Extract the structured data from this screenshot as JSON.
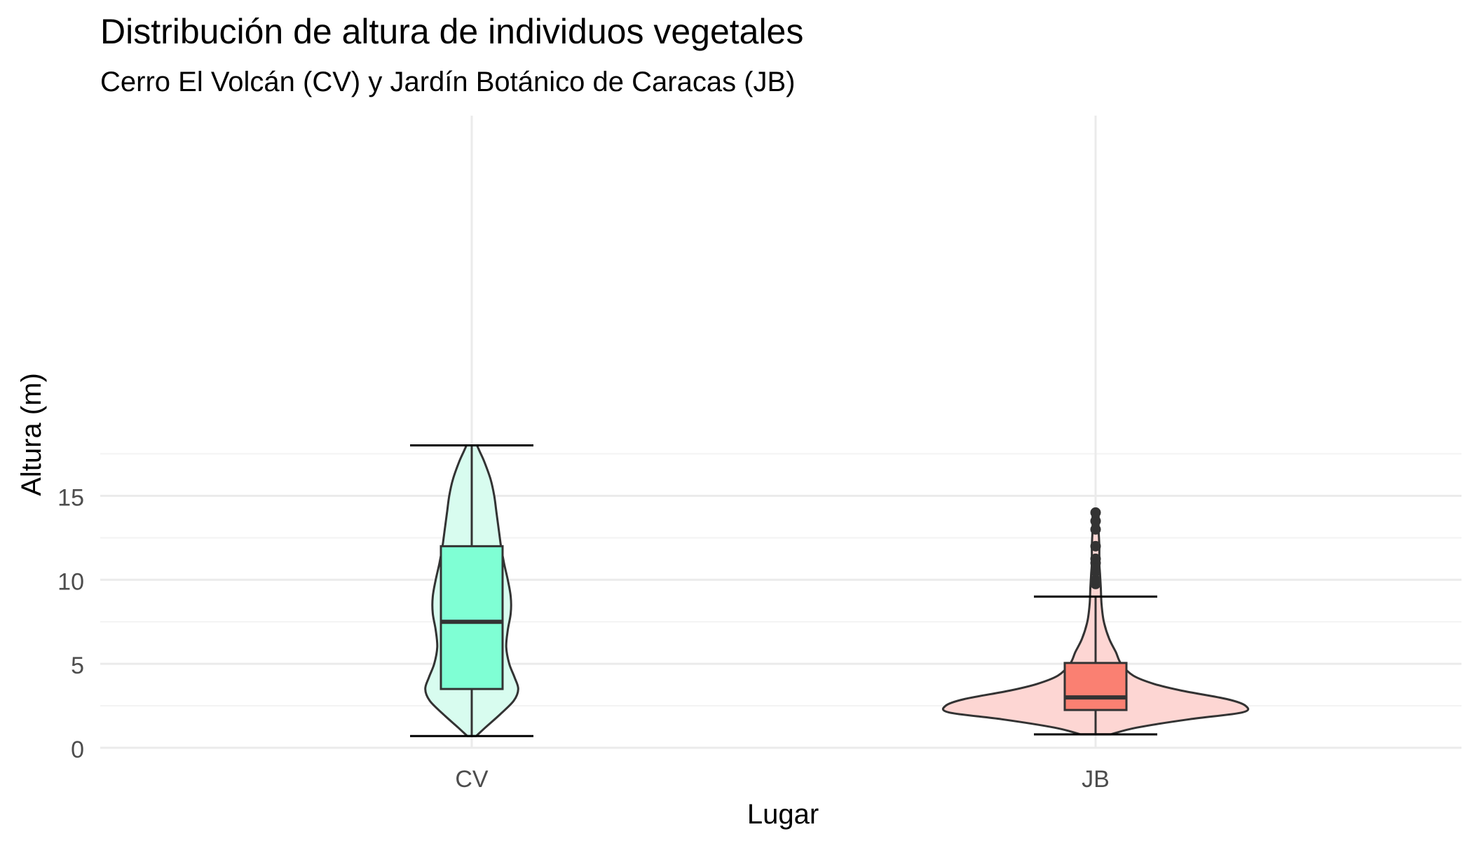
{
  "chart_data": {
    "type": "violin",
    "title": "Distribución de altura de individuos vegetales",
    "subtitle": "Cerro El Volcán (CV) y Jardín Botánico de Caracas (JB)",
    "xlabel": "Lugar",
    "ylabel": "Altura (m)",
    "ylim": [
      0,
      18.5
    ],
    "y_ticks": [
      0,
      5,
      10,
      15
    ],
    "y_tick_labels": [
      "0",
      "5",
      "10",
      "15"
    ],
    "grid": true,
    "legend": "none",
    "categories": [
      "CV",
      "JB"
    ],
    "groups": [
      {
        "name": "CV",
        "violin_color": "#d8fcef",
        "box_color": "#7fffd4",
        "min": 0.7,
        "q1": 3.5,
        "median": 7.5,
        "q3": 12.0,
        "max": 18.0,
        "outliers": [],
        "density_profile": [
          {
            "y": 0.7,
            "w": 0.06
          },
          {
            "y": 1.2,
            "w": 0.18
          },
          {
            "y": 2.0,
            "w": 0.38
          },
          {
            "y": 2.8,
            "w": 0.56
          },
          {
            "y": 3.5,
            "w": 0.62
          },
          {
            "y": 4.2,
            "w": 0.57
          },
          {
            "y": 5.0,
            "w": 0.5
          },
          {
            "y": 6.0,
            "w": 0.46
          },
          {
            "y": 7.0,
            "w": 0.48
          },
          {
            "y": 8.0,
            "w": 0.52
          },
          {
            "y": 9.0,
            "w": 0.52
          },
          {
            "y": 10.0,
            "w": 0.48
          },
          {
            "y": 11.0,
            "w": 0.43
          },
          {
            "y": 12.0,
            "w": 0.39
          },
          {
            "y": 13.0,
            "w": 0.36
          },
          {
            "y": 14.0,
            "w": 0.33
          },
          {
            "y": 15.0,
            "w": 0.3
          },
          {
            "y": 16.0,
            "w": 0.25
          },
          {
            "y": 17.0,
            "w": 0.17
          },
          {
            "y": 17.6,
            "w": 0.11
          },
          {
            "y": 18.0,
            "w": 0.07
          }
        ]
      },
      {
        "name": "JB",
        "violin_color": "#fdd6d3",
        "box_color": "#fa8072",
        "min": 0.8,
        "q1": 2.25,
        "median": 3.0,
        "q3": 5.05,
        "max": 9.0,
        "outliers": [
          9.75,
          10.0,
          10.5,
          11.0,
          11.25,
          12.0,
          13.0,
          13.5,
          14.0
        ],
        "density_profile": [
          {
            "y": 0.8,
            "w": 0.2
          },
          {
            "y": 1.2,
            "w": 0.55
          },
          {
            "y": 1.7,
            "w": 1.25
          },
          {
            "y": 2.1,
            "w": 1.95
          },
          {
            "y": 2.5,
            "w": 2.0
          },
          {
            "y": 2.9,
            "w": 1.75
          },
          {
            "y": 3.4,
            "w": 1.15
          },
          {
            "y": 3.8,
            "w": 0.78
          },
          {
            "y": 4.3,
            "w": 0.5
          },
          {
            "y": 5.0,
            "w": 0.34
          },
          {
            "y": 5.7,
            "w": 0.27
          },
          {
            "y": 6.5,
            "w": 0.18
          },
          {
            "y": 7.5,
            "w": 0.11
          },
          {
            "y": 8.5,
            "w": 0.08
          },
          {
            "y": 9.5,
            "w": 0.07
          },
          {
            "y": 10.3,
            "w": 0.06
          },
          {
            "y": 11.0,
            "w": 0.05
          },
          {
            "y": 12.0,
            "w": 0.05
          },
          {
            "y": 13.0,
            "w": 0.04
          },
          {
            "y": 13.9,
            "w": 0.04
          },
          {
            "y": 14.0,
            "w": 0.03
          }
        ]
      }
    ]
  }
}
